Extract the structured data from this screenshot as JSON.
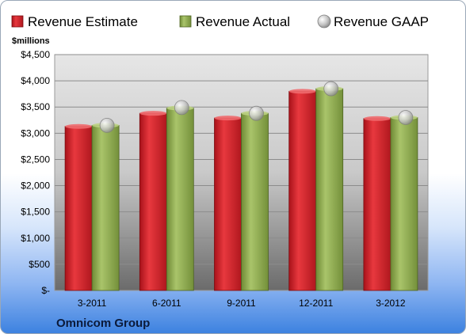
{
  "chart_data": {
    "type": "bar",
    "categories": [
      "3-2011",
      "6-2011",
      "9-2011",
      "12-2011",
      "3-2012"
    ],
    "series": [
      {
        "name": "Revenue Estimate",
        "values": [
          3130,
          3380,
          3290,
          3800,
          3280
        ],
        "color": "#d4222a",
        "kind": "bar"
      },
      {
        "name": "Revenue Actual",
        "values": [
          3150,
          3480,
          3380,
          3850,
          3300
        ],
        "color": "#8faa4e",
        "kind": "bar"
      },
      {
        "name": "Revenue GAAP",
        "values": [
          3150,
          3490,
          3380,
          3850,
          3300
        ],
        "color": "#c8c8c8",
        "kind": "marker"
      }
    ],
    "ylabel": "$millions",
    "ylim": [
      0,
      4500
    ],
    "yticks": [
      0,
      500,
      1000,
      1500,
      2000,
      2500,
      3000,
      3500,
      4000,
      4500
    ],
    "ytick_labels": [
      "$-",
      "$500",
      "$1,000",
      "$1,500",
      "$2,000",
      "$2,500",
      "$3,000",
      "$3,500",
      "$4,000",
      "$4,500"
    ],
    "grid": true,
    "legend_position": "top"
  },
  "company": "Omnicom Group"
}
